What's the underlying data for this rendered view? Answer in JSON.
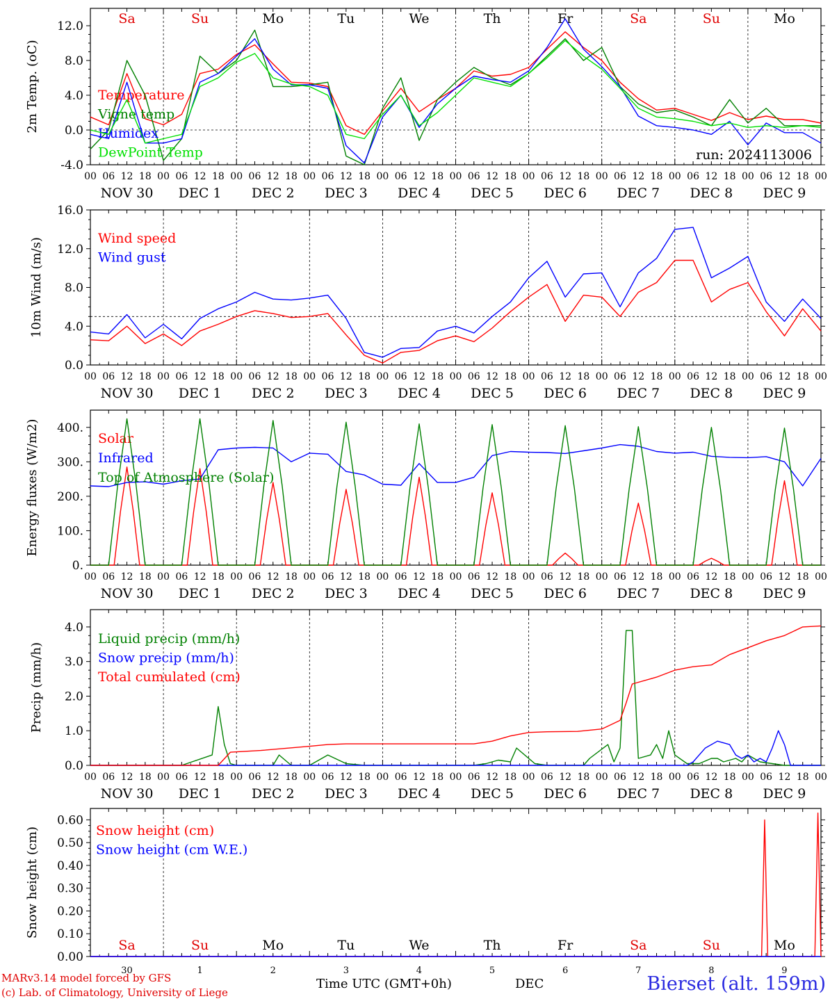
{
  "chart_data": [
    {
      "type": "line",
      "ylabel": "2m Temp. (oC)",
      "ylim": [
        -4,
        14
      ],
      "yticks": [
        "-4.0",
        "0.0",
        "4.0",
        "8.0",
        "12.0"
      ],
      "reference_line": 0,
      "hour_ticks": [
        "00",
        "06",
        "12",
        "18"
      ],
      "day_labels": [
        {
          "text": "Sa",
          "color": "#e00000"
        },
        {
          "text": "Su",
          "color": "#e00000"
        },
        {
          "text": "Mo",
          "color": "#000000"
        },
        {
          "text": "Tu",
          "color": "#000000"
        },
        {
          "text": "We",
          "color": "#000000"
        },
        {
          "text": "Th",
          "color": "#000000"
        },
        {
          "text": "Fr",
          "color": "#000000"
        },
        {
          "text": "Sa",
          "color": "#e00000"
        },
        {
          "text": "Su",
          "color": "#e00000"
        },
        {
          "text": "Mo",
          "color": "#000000"
        }
      ],
      "date_labels": [
        "NOV 30",
        "DEC  1",
        "DEC  2",
        "DEC  3",
        "DEC  4",
        "DEC  5",
        "DEC  6",
        "DEC  7",
        "DEC  8",
        "DEC  9"
      ],
      "run_label": "run: 2024113006",
      "x_hours": [
        0,
        6,
        12,
        18,
        24,
        30,
        36,
        42,
        48,
        54,
        60,
        66,
        72,
        78,
        84,
        90,
        96,
        102,
        108,
        114,
        120,
        126,
        132,
        138,
        144,
        150,
        156,
        162,
        168,
        174,
        180,
        186,
        192,
        198,
        204,
        210,
        216,
        222,
        228,
        234,
        240
      ],
      "series": [
        {
          "name": "Temperature",
          "color": "#ff0000",
          "values": [
            1.5,
            0.6,
            6.5,
            1.3,
            0.6,
            1.8,
            6.5,
            7.0,
            8.7,
            9.8,
            7.6,
            5.5,
            5.4,
            5.0,
            0.5,
            -0.5,
            2.2,
            4.8,
            2.1,
            3.5,
            4.8,
            6.8,
            6.2,
            6.4,
            7.2,
            9.3,
            11.3,
            9.5,
            8.0,
            5.5,
            3.6,
            2.3,
            2.5,
            1.8,
            1.1,
            2.0,
            1.2,
            1.6,
            1.2,
            1.2,
            0.8
          ]
        },
        {
          "name": "Vigne temp",
          "color": "#008000",
          "values": [
            -2.2,
            0.0,
            8.0,
            4.0,
            -3.5,
            -1.0,
            8.5,
            6.5,
            8.0,
            11.5,
            5.0,
            5.0,
            5.2,
            5.5,
            -3.0,
            -4.0,
            2.5,
            6.0,
            -1.2,
            3.5,
            5.5,
            7.2,
            6.0,
            5.2,
            6.5,
            8.5,
            10.5,
            8.0,
            9.5,
            5.0,
            3.0,
            2.0,
            2.3,
            1.5,
            0.5,
            3.5,
            0.8,
            2.5,
            0.5,
            0.5,
            0.5
          ]
        },
        {
          "name": "Humidex",
          "color": "#0000ff",
          "values": [
            -0.5,
            -1.0,
            5.5,
            -1.5,
            -1.5,
            -1.0,
            5.5,
            6.5,
            8.5,
            10.5,
            7.0,
            5.2,
            5.2,
            4.8,
            -1.8,
            -3.8,
            1.5,
            4.0,
            0.3,
            3.0,
            4.8,
            6.2,
            5.8,
            5.5,
            6.8,
            9.5,
            12.8,
            9.3,
            7.3,
            5.0,
            1.6,
            0.5,
            0.3,
            0.0,
            -0.5,
            1.0,
            -1.7,
            0.8,
            -0.3,
            -0.3,
            -1.5
          ]
        },
        {
          "name": "DewPoint Temp",
          "color": "#00e000",
          "values": [
            0.0,
            -0.5,
            3.5,
            -1.5,
            -1.0,
            -0.5,
            5.0,
            6.0,
            7.8,
            8.8,
            6.0,
            5.3,
            5.0,
            4.0,
            -0.5,
            -1.0,
            1.8,
            4.0,
            0.5,
            2.0,
            4.0,
            6.0,
            5.5,
            5.0,
            6.5,
            8.3,
            10.3,
            8.5,
            7.0,
            4.8,
            2.5,
            1.5,
            1.3,
            1.0,
            0.5,
            0.8,
            0.3,
            0.5,
            0.3,
            0.5,
            0.3
          ]
        }
      ]
    },
    {
      "type": "line",
      "ylabel": "10m Wind (m/s)",
      "ylim": [
        0,
        16
      ],
      "yticks": [
        "0.0",
        "4.0",
        "8.0",
        "12.0",
        "16.0"
      ],
      "reference_line": 5,
      "hour_ticks": [
        "00",
        "06",
        "12",
        "18"
      ],
      "date_labels": [
        "NOV 30",
        "DEC  1",
        "DEC  2",
        "DEC  3",
        "DEC  4",
        "DEC  5",
        "DEC  6",
        "DEC  7",
        "DEC  8",
        "DEC  9"
      ],
      "x_hours": [
        0,
        6,
        12,
        18,
        24,
        30,
        36,
        42,
        48,
        54,
        60,
        66,
        72,
        78,
        84,
        90,
        96,
        102,
        108,
        114,
        120,
        126,
        132,
        138,
        144,
        150,
        156,
        162,
        168,
        174,
        180,
        186,
        192,
        198,
        204,
        210,
        216,
        222,
        228,
        234,
        240
      ],
      "series": [
        {
          "name": "Wind speed",
          "color": "#ff0000",
          "values": [
            2.6,
            2.5,
            4.0,
            2.2,
            3.2,
            2.0,
            3.5,
            4.2,
            5.0,
            5.6,
            5.3,
            4.9,
            5.0,
            5.3,
            3.1,
            1.0,
            0.2,
            1.3,
            1.5,
            2.5,
            3.0,
            2.4,
            3.8,
            5.5,
            7.0,
            8.3,
            4.5,
            7.2,
            7.0,
            5.0,
            7.5,
            8.5,
            10.8,
            10.8,
            6.5,
            7.8,
            8.5,
            5.5,
            3.0,
            5.8,
            3.5
          ]
        },
        {
          "name": "Wind gust",
          "color": "#0000ff",
          "values": [
            3.4,
            3.2,
            5.2,
            2.8,
            4.2,
            2.7,
            4.8,
            5.8,
            6.5,
            7.5,
            6.8,
            6.7,
            6.9,
            7.2,
            4.8,
            1.3,
            0.8,
            1.7,
            1.8,
            3.5,
            4.0,
            3.3,
            5.0,
            6.5,
            9.0,
            10.7,
            7.0,
            9.4,
            9.5,
            6.0,
            9.5,
            11.0,
            14.0,
            14.2,
            9.0,
            10.0,
            11.2,
            6.5,
            4.5,
            6.8,
            4.8
          ]
        }
      ]
    },
    {
      "type": "line",
      "ylabel": "Energy fluxes (W/m2)",
      "ylim": [
        0,
        450
      ],
      "yticks": [
        "0.",
        "100.",
        "200.",
        "300.",
        "400."
      ],
      "hour_ticks": [
        "00",
        "06",
        "12",
        "18"
      ],
      "date_labels": [
        "NOV 30",
        "DEC  1",
        "DEC  2",
        "DEC  3",
        "DEC  4",
        "DEC  5",
        "DEC  6",
        "DEC  7",
        "DEC  8",
        "DEC  9"
      ],
      "series": [
        {
          "name": "Solar",
          "color": "#ff0000",
          "daily_peak": [
            285,
            280,
            240,
            220,
            255,
            210,
            35,
            180,
            20,
            245
          ]
        },
        {
          "name": "Infrared",
          "color": "#0000ff",
          "x_hours": [
            0,
            6,
            12,
            18,
            24,
            30,
            36,
            42,
            48,
            54,
            60,
            66,
            72,
            78,
            84,
            90,
            96,
            102,
            108,
            114,
            120,
            126,
            132,
            138,
            144,
            150,
            156,
            162,
            168,
            174,
            180,
            186,
            192,
            198,
            204,
            210,
            216,
            222,
            228,
            234,
            240
          ],
          "values": [
            230,
            228,
            240,
            242,
            235,
            245,
            250,
            335,
            340,
            342,
            340,
            300,
            325,
            322,
            272,
            262,
            235,
            232,
            295,
            240,
            240,
            255,
            318,
            330,
            328,
            327,
            324,
            332,
            340,
            350,
            345,
            330,
            325,
            328,
            316,
            313,
            312,
            315,
            300,
            230,
            310
          ]
        },
        {
          "name": "Top of Atmosphere (Solar)",
          "color": "#008000",
          "daily_peak": [
            425,
            425,
            420,
            415,
            410,
            408,
            405,
            402,
            400,
            398
          ]
        }
      ]
    },
    {
      "type": "line",
      "ylabel": "Precip (mm/h)",
      "ylim": [
        0,
        4.5
      ],
      "yticks": [
        "0.0",
        "1.0",
        "2.0",
        "3.0",
        "4.0"
      ],
      "hour_ticks": [
        "00",
        "06",
        "12",
        "18"
      ],
      "date_labels": [
        "NOV 30",
        "DEC  1",
        "DEC  2",
        "DEC  3",
        "DEC  4",
        "DEC  5",
        "DEC  6",
        "DEC  7",
        "DEC  8",
        "DEC  9"
      ],
      "series": [
        {
          "name": "Liquid precip (mm/h)",
          "color": "#008000",
          "x_hours": [
            0,
            30,
            40,
            42,
            44,
            46,
            48,
            60,
            62,
            66,
            68,
            72,
            78,
            84,
            90,
            96,
            102,
            108,
            114,
            120,
            126,
            130,
            134,
            138,
            140,
            146,
            150,
            156,
            162,
            164,
            170,
            172,
            174,
            176,
            178,
            180,
            184,
            186,
            188,
            190,
            192,
            196,
            200,
            204,
            206,
            208,
            212,
            214,
            216,
            220,
            224,
            228,
            232,
            236,
            240
          ],
          "values": [
            0,
            0,
            0.3,
            1.7,
            0.6,
            0.05,
            0,
            0,
            0.3,
            0,
            0,
            0,
            0.3,
            0.05,
            0,
            0,
            0,
            0,
            0,
            0,
            0,
            0.05,
            0.15,
            0.1,
            0.5,
            0.05,
            0,
            0,
            0,
            0.2,
            0.6,
            0.1,
            0.5,
            3.9,
            3.9,
            0.2,
            0.3,
            0.6,
            0.2,
            1.0,
            0.3,
            0.05,
            0.05,
            0.2,
            0.2,
            0.1,
            0.2,
            0.1,
            0.3,
            0.1,
            0.05,
            0,
            0,
            0,
            0
          ]
        },
        {
          "name": "Snow precip (mm/h)",
          "color": "#0000ff",
          "x_hours": [
            0,
            196,
            198,
            202,
            206,
            210,
            212,
            214,
            216,
            218,
            220,
            222,
            224,
            226,
            228,
            230,
            234,
            240
          ],
          "values": [
            0,
            0,
            0.1,
            0.5,
            0.7,
            0.6,
            0.3,
            0.2,
            0.3,
            0.1,
            0.2,
            0.1,
            0.5,
            1.0,
            0.6,
            0,
            0,
            0
          ]
        },
        {
          "name": "Total cumulated (cm)",
          "color": "#ff0000",
          "x_hours": [
            0,
            42,
            46,
            56,
            72,
            78,
            84,
            96,
            108,
            126,
            132,
            138,
            144,
            150,
            160,
            168,
            174,
            176,
            178,
            184,
            186,
            192,
            198,
            204,
            210,
            216,
            222,
            228,
            234,
            240
          ],
          "values": [
            0,
            0,
            0.38,
            0.43,
            0.55,
            0.6,
            0.62,
            0.62,
            0.62,
            0.62,
            0.7,
            0.85,
            0.95,
            0.97,
            0.98,
            1.05,
            1.3,
            1.8,
            2.35,
            2.5,
            2.55,
            2.75,
            2.85,
            2.9,
            3.2,
            3.4,
            3.6,
            3.75,
            4.0,
            4.03
          ]
        }
      ]
    },
    {
      "type": "line",
      "ylabel": "Snow height (cm)",
      "ylim": [
        0,
        0.65
      ],
      "yticks": [
        "0.00",
        "0.10",
        "0.20",
        "0.30",
        "0.40",
        "0.50",
        "0.60"
      ],
      "day_labels": [
        {
          "text": "Sa",
          "color": "#e00000"
        },
        {
          "text": "Su",
          "color": "#e00000"
        },
        {
          "text": "Mo",
          "color": "#000000"
        },
        {
          "text": "Tu",
          "color": "#000000"
        },
        {
          "text": "We",
          "color": "#000000"
        },
        {
          "text": "Th",
          "color": "#000000"
        },
        {
          "text": "Fr",
          "color": "#000000"
        },
        {
          "text": "Sa",
          "color": "#e00000"
        },
        {
          "text": "Su",
          "color": "#e00000"
        },
        {
          "text": "Mo",
          "color": "#000000"
        }
      ],
      "day_numbers": [
        "30",
        "1",
        "2",
        "3",
        "4",
        "5",
        "6",
        "7",
        "8",
        "9"
      ],
      "series": [
        {
          "name": "Snow height (cm)",
          "color": "#ff0000",
          "x_hours": [
            0,
            220.5,
            221.5,
            222.5,
            238,
            239,
            240
          ],
          "values": [
            0,
            0,
            0.6,
            0,
            0,
            0.63,
            0
          ]
        },
        {
          "name": "Snow height (cm W.E.)",
          "color": "#0000ff",
          "x_hours": [
            0,
            240
          ],
          "values": [
            0,
            0
          ]
        }
      ]
    }
  ],
  "footer": {
    "credit_line1": "MARv3.14 model forced by GFS",
    "credit_line2": "(c) Lab. of Climatology, University of Liege",
    "xlabel": "Time UTC (GMT+0h)",
    "month": "DEC",
    "station": "Bierset (alt. 159m)"
  }
}
